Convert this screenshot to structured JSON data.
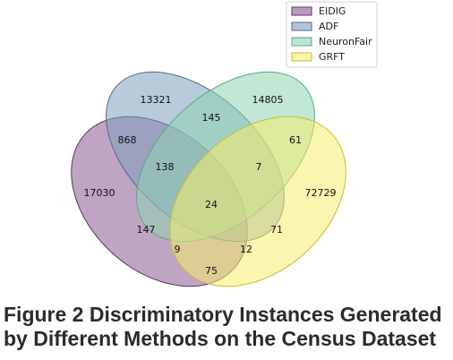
{
  "chart_data": {
    "type": "venn",
    "legend_position": "top-right",
    "sets": [
      {
        "name": "EIDIG",
        "color": "#8b5a91"
      },
      {
        "name": "ADF",
        "color": "#7f9fbd"
      },
      {
        "name": "NeuronFair",
        "color": "#8fd4b0"
      },
      {
        "name": "GRFT",
        "color": "#f6ec6e"
      }
    ],
    "regions": [
      {
        "sets": [
          "EIDIG"
        ],
        "value": "17030"
      },
      {
        "sets": [
          "ADF"
        ],
        "value": "13321"
      },
      {
        "sets": [
          "NeuronFair"
        ],
        "value": "14805"
      },
      {
        "sets": [
          "GRFT"
        ],
        "value": "72729"
      },
      {
        "sets": [
          "EIDIG",
          "ADF"
        ],
        "value": "868"
      },
      {
        "sets": [
          "ADF",
          "NeuronFair"
        ],
        "value": "145"
      },
      {
        "sets": [
          "NeuronFair",
          "GRFT"
        ],
        "value": "61"
      },
      {
        "sets": [
          "EIDIG",
          "ADF",
          "NeuronFair"
        ],
        "value": "138"
      },
      {
        "sets": [
          "ADF",
          "NeuronFair",
          "GRFT"
        ],
        "value": "7"
      },
      {
        "sets": [
          "EIDIG",
          "ADF",
          "NeuronFair",
          "GRFT"
        ],
        "value": "24"
      },
      {
        "sets": [
          "EIDIG",
          "ADF",
          "GRFT"
        ],
        "value": "147"
      },
      {
        "sets": [
          "ADF",
          "GRFT"
        ],
        "value": "71"
      },
      {
        "sets": [
          "EIDIG",
          "NeuronFair"
        ],
        "value": "9"
      },
      {
        "sets": [
          "EIDIG",
          "NeuronFair",
          "GRFT"
        ],
        "value": "12"
      },
      {
        "sets": [
          "EIDIG",
          "GRFT"
        ],
        "value": "75"
      }
    ]
  },
  "caption": {
    "line1": "Figure 2 Discriminatory Instances Generated",
    "line2": "by Different Methods on the Census Dataset"
  }
}
